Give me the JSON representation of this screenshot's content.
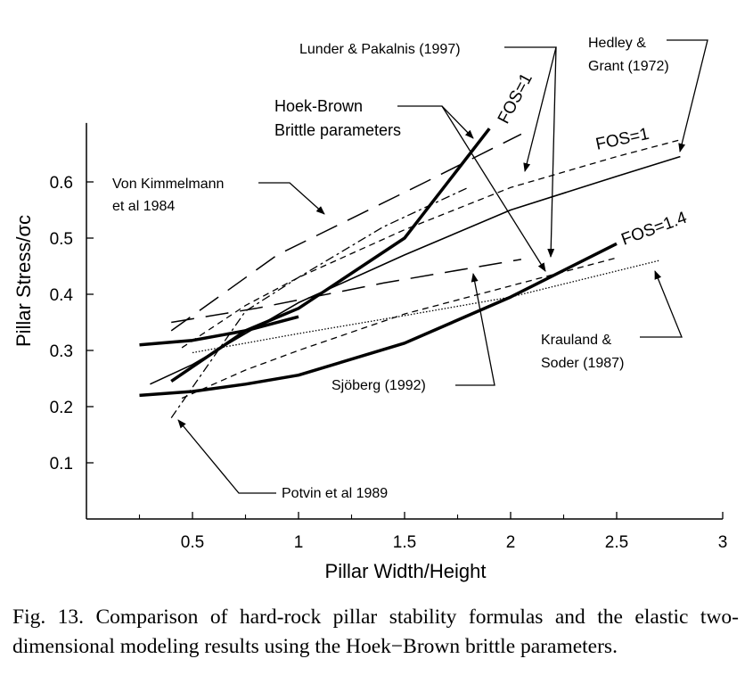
{
  "chart_data": {
    "type": "line",
    "xlabel": "Pillar Width/Height",
    "ylabel": "Pillar Stress/σc",
    "xlim": [
      0,
      3
    ],
    "ylim": [
      0,
      0.7
    ],
    "xticks": [
      "0.5",
      "1",
      "1.5",
      "2",
      "2.5",
      "3"
    ],
    "yticks": [
      "0.1",
      "0.2",
      "0.3",
      "0.4",
      "0.5",
      "0.6"
    ],
    "grid": false,
    "series": [
      {
        "name": "Hoek-Brown Brittle parameters FOS=1",
        "style": "thick-solid",
        "x": [
          0.4,
          0.75,
          1.0,
          1.5,
          1.9
        ],
        "y": [
          0.245,
          0.335,
          0.375,
          0.5,
          0.695
        ]
      },
      {
        "name": "Hoek-Brown Brittle parameters FOS=1.4",
        "style": "thick-solid",
        "x": [
          0.25,
          0.5,
          0.75,
          1.0,
          1.5,
          2.0,
          2.5
        ],
        "y": [
          0.22,
          0.227,
          0.24,
          0.256,
          0.313,
          0.395,
          0.49
        ]
      },
      {
        "name": "Hoek-Brown (thick)",
        "style": "thick-solid",
        "x": [
          0.25,
          0.5,
          0.75,
          1.0
        ],
        "y": [
          0.31,
          0.318,
          0.335,
          0.36
        ]
      },
      {
        "name": "Hedley & Grant (1972)",
        "style": "thin-solid",
        "x": [
          0.3,
          0.5,
          1.0,
          1.5,
          2.0,
          2.5,
          2.8
        ],
        "y": [
          0.24,
          0.275,
          0.385,
          0.47,
          0.55,
          0.61,
          0.645
        ]
      },
      {
        "name": "Lunder & Pakalnis (1997) FOS=1",
        "style": "short-dash",
        "x": [
          0.45,
          0.75,
          1.0,
          1.5,
          2.0,
          2.5,
          2.8
        ],
        "y": [
          0.305,
          0.38,
          0.43,
          0.515,
          0.59,
          0.645,
          0.675
        ]
      },
      {
        "name": "Lunder & Pakalnis (1997) FOS=1.4",
        "style": "short-dash",
        "x": [
          0.45,
          0.75,
          1.0,
          1.5,
          2.0,
          2.5
        ],
        "y": [
          0.215,
          0.265,
          0.3,
          0.365,
          0.415,
          0.465
        ]
      },
      {
        "name": "Von Kimmelmann et al 1984",
        "style": "long-dash",
        "x": [
          0.4,
          0.8,
          1.4,
          2.05
        ],
        "y": [
          0.35,
          0.375,
          0.42,
          0.462
        ]
      },
      {
        "name": "Sjöberg (1992)",
        "style": "long-dash",
        "x": [
          0.4,
          0.9,
          1.6,
          2.05
        ],
        "y": [
          0.335,
          0.47,
          0.6,
          0.685
        ]
      },
      {
        "name": "Krauland & Soder (1987)",
        "style": "dotted",
        "x": [
          0.5,
          1.0,
          1.5,
          2.0,
          2.7
        ],
        "y": [
          0.296,
          0.33,
          0.362,
          0.395,
          0.46
        ]
      },
      {
        "name": "Potvin et al 1989",
        "style": "dash-dot",
        "x": [
          0.4,
          0.75,
          1.0,
          1.4,
          1.8
        ],
        "y": [
          0.18,
          0.37,
          0.43,
          0.52,
          0.59
        ]
      }
    ],
    "annotations": [
      {
        "text": "Lunder & Pakalnis (1997)"
      },
      {
        "text": "Hedley &"
      },
      {
        "text": "Grant (1972)"
      },
      {
        "text": "Hoek-Brown"
      },
      {
        "text": "Brittle parameters"
      },
      {
        "text": "Von Kimmelmann"
      },
      {
        "text": "et al 1984"
      },
      {
        "text": "Krauland &"
      },
      {
        "text": "Soder (1987)"
      },
      {
        "text": "Sjöberg (1992)"
      },
      {
        "text": "Potvin et al 1989"
      }
    ],
    "fos_labels": [
      "FOS=1",
      "FOS=1",
      "FOS=1.4"
    ]
  },
  "caption": "Fig. 13. Comparison of hard-rock pillar stability formulas and the elastic two-dimensional modeling results using the Hoek−Brown brittle parameters."
}
